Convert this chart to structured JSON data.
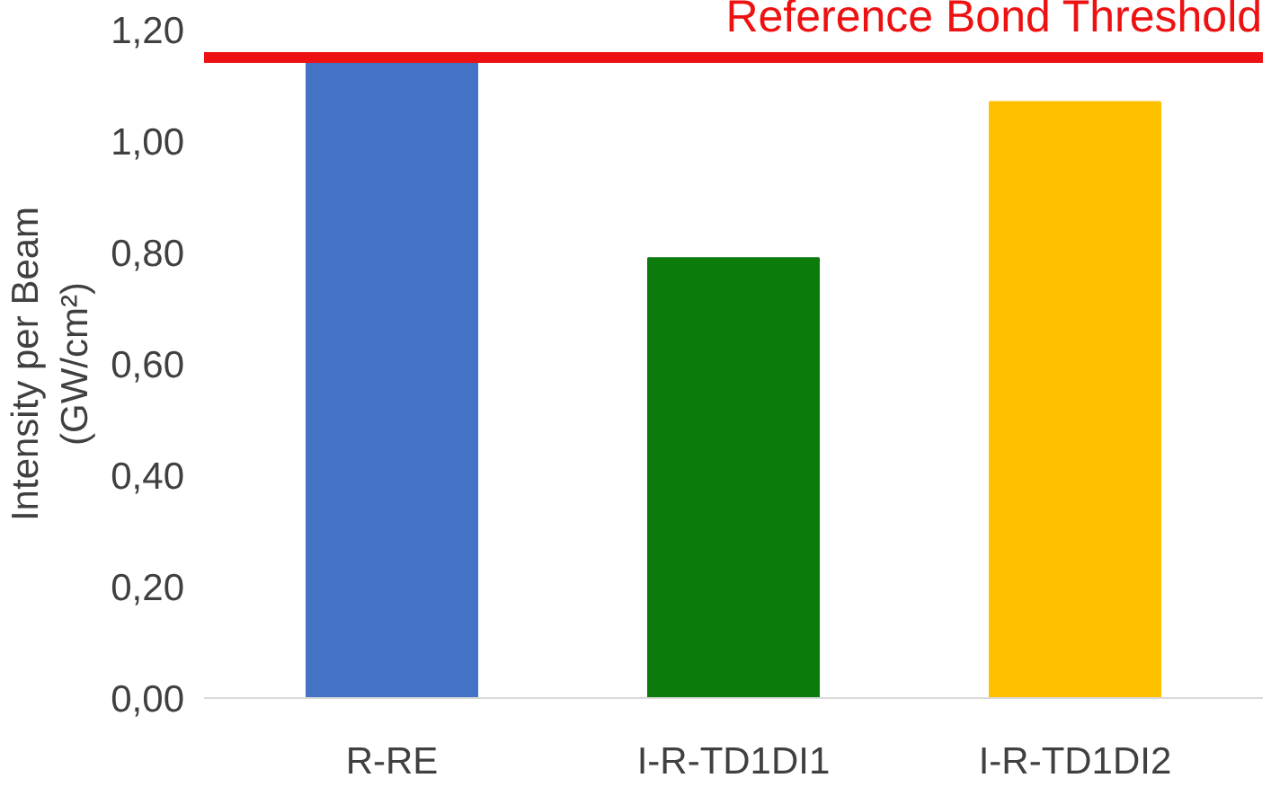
{
  "chart_data": {
    "type": "bar",
    "ylabel": "Intensity per Beam\n(GW/cm²)",
    "categories": [
      "R-RE",
      "I-R-TD1DI1",
      "I-R-TD1DI2"
    ],
    "values": [
      1.15,
      0.79,
      1.07
    ],
    "colors": [
      "#4472c4",
      "#0b7b0b",
      "#ffc000"
    ],
    "ylim": [
      0,
      1.2
    ],
    "yticks": [
      {
        "value": 0,
        "label": "0,00"
      },
      {
        "value": 0.2,
        "label": "0,20"
      },
      {
        "value": 0.4,
        "label": "0,40"
      },
      {
        "value": 0.6,
        "label": "0,60"
      },
      {
        "value": 0.8,
        "label": "0,80"
      },
      {
        "value": 1.0,
        "label": "1,00"
      },
      {
        "value": 1.2,
        "label": "1,20"
      }
    ],
    "ref_lines": [
      {
        "axis": "y",
        "value": 1.15,
        "label": "Reference Bond Threshold",
        "color": "#ee1111"
      }
    ],
    "grid": false
  }
}
